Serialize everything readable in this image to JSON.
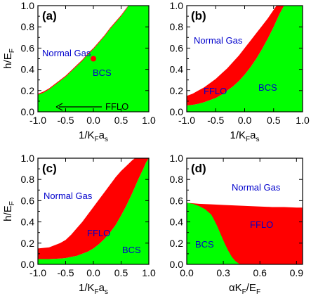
{
  "colors": {
    "normal": "#ffffff",
    "bcs": "#00ff00",
    "fflo": "#ff0000",
    "dot": "#ff0000",
    "frame": "#000000"
  },
  "chart_data": [
    {
      "type": "area",
      "panel_label": "(a)",
      "xlabel": {
        "main": "1/K",
        "sub1": "F",
        "mid": "a",
        "sub2": "s"
      },
      "ylabel": {
        "main": "h/E",
        "sub": "F"
      },
      "xlim": [
        -1.0,
        1.0
      ],
      "ylim": [
        0.0,
        1.0
      ],
      "xticks": [
        "-1.0",
        "-0.5",
        "0.0",
        "0.5",
        "1.0"
      ],
      "yticks": [
        "0.0",
        "0.2",
        "0.4",
        "0.6",
        "0.8",
        "1.0"
      ],
      "regions": [
        "Normal Gas",
        "BCS",
        "FFLO"
      ],
      "annotation": "FFLO",
      "point": {
        "x": 0.0,
        "y": 0.5
      },
      "upper_boundary": {
        "x": [
          -1.0,
          -0.9,
          -0.8,
          -0.7,
          -0.6,
          -0.5,
          -0.4,
          -0.3,
          -0.2,
          -0.1,
          0.0,
          0.1,
          0.2,
          0.3,
          0.4,
          0.5,
          0.6,
          0.63
        ],
        "y": [
          0.17,
          0.19,
          0.22,
          0.26,
          0.3,
          0.34,
          0.39,
          0.44,
          0.49,
          0.55,
          0.6,
          0.66,
          0.72,
          0.79,
          0.85,
          0.91,
          0.98,
          1.0
        ]
      },
      "lower_boundary": {
        "x": [
          -1.0,
          -0.9,
          -0.8,
          -0.7,
          -0.6,
          -0.5,
          -0.4,
          -0.3,
          -0.2,
          -0.1,
          0.0,
          0.1,
          0.2,
          0.3,
          0.4,
          0.5,
          0.6,
          0.63
        ],
        "y": [
          0.16,
          0.18,
          0.21,
          0.25,
          0.29,
          0.33,
          0.38,
          0.43,
          0.48,
          0.54,
          0.59,
          0.65,
          0.71,
          0.78,
          0.84,
          0.9,
          0.97,
          1.0
        ]
      }
    },
    {
      "type": "area",
      "panel_label": "(b)",
      "xlabel": {
        "main": "1/K",
        "sub1": "F",
        "mid": "a",
        "sub2": "s"
      },
      "ylabel": {
        "main": "",
        "sub": ""
      },
      "xlim": [
        -1.0,
        1.0
      ],
      "ylim": [
        0.0,
        1.0
      ],
      "xticks": [
        "-1.0",
        "-0.5",
        "0.0",
        "0.5",
        "1.0"
      ],
      "yticks": [
        "0.0",
        "0.2",
        "0.4",
        "0.6",
        "0.8",
        "1.0"
      ],
      "regions": [
        "Normal Gas",
        "FFLO",
        "BCS"
      ],
      "upper_boundary": {
        "x": [
          -1.0,
          -0.9,
          -0.8,
          -0.7,
          -0.6,
          -0.5,
          -0.4,
          -0.3,
          -0.2,
          -0.1,
          0.0,
          0.1,
          0.2,
          0.3,
          0.4,
          0.5,
          0.55
        ],
        "y": [
          0.15,
          0.17,
          0.2,
          0.23,
          0.27,
          0.31,
          0.36,
          0.41,
          0.47,
          0.53,
          0.6,
          0.67,
          0.74,
          0.81,
          0.88,
          0.96,
          1.0
        ]
      },
      "lower_boundary": {
        "x": [
          -1.0,
          -0.9,
          -0.8,
          -0.7,
          -0.6,
          -0.5,
          -0.4,
          -0.3,
          -0.2,
          -0.1,
          0.0,
          0.1,
          0.2,
          0.3,
          0.4,
          0.5,
          0.6,
          0.68
        ],
        "y": [
          0.06,
          0.065,
          0.075,
          0.09,
          0.11,
          0.13,
          0.16,
          0.2,
          0.24,
          0.29,
          0.35,
          0.42,
          0.5,
          0.59,
          0.69,
          0.8,
          0.92,
          1.0
        ]
      }
    },
    {
      "type": "area",
      "panel_label": "(c)",
      "xlabel": {
        "main": "1/K",
        "sub1": "F",
        "mid": "a",
        "sub2": "s"
      },
      "ylabel": {
        "main": "h/E",
        "sub": "F"
      },
      "xlim": [
        -1.0,
        1.0
      ],
      "ylim": [
        0.0,
        1.0
      ],
      "xticks": [
        "-1.0",
        "-0.5",
        "0.0",
        "0.5",
        "1.0"
      ],
      "yticks": [
        "0.0",
        "0.2",
        "0.4",
        "0.6",
        "0.8",
        "1.0"
      ],
      "regions": [
        "Normal Gas",
        "FFLO",
        "BCS"
      ],
      "upper_boundary": {
        "x": [
          -1.0,
          -0.8,
          -0.6,
          -0.5,
          -0.4,
          -0.3,
          -0.2,
          -0.1,
          0.0,
          0.1,
          0.2,
          0.3,
          0.4,
          0.5,
          0.6,
          0.7,
          0.75
        ],
        "y": [
          0.15,
          0.16,
          0.2,
          0.23,
          0.28,
          0.34,
          0.4,
          0.47,
          0.54,
          0.61,
          0.68,
          0.75,
          0.82,
          0.88,
          0.93,
          0.98,
          1.0
        ]
      },
      "lower_boundary": {
        "x": [
          -1.0,
          -0.8,
          -0.6,
          -0.5,
          -0.4,
          -0.3,
          -0.2,
          -0.1,
          0.0,
          0.1,
          0.2,
          0.3,
          0.4,
          0.5,
          0.6,
          0.7,
          0.8,
          0.9,
          0.95,
          1.0
        ],
        "y": [
          0.05,
          0.05,
          0.055,
          0.06,
          0.07,
          0.08,
          0.1,
          0.12,
          0.15,
          0.19,
          0.24,
          0.3,
          0.37,
          0.46,
          0.56,
          0.67,
          0.79,
          0.9,
          0.96,
          1.0
        ]
      }
    },
    {
      "type": "area",
      "panel_label": "(d)",
      "xlabel": {
        "main": "αK",
        "sub1": "F",
        "mid": "/E",
        "sub2": "F"
      },
      "ylabel": {
        "main": "",
        "sub": ""
      },
      "xlim": [
        0.0,
        0.95
      ],
      "ylim": [
        0.0,
        1.0
      ],
      "xticks": [
        "0.0",
        "0.3",
        "0.6",
        "0.9"
      ],
      "xtick_values": [
        0.0,
        0.3,
        0.6,
        0.9
      ],
      "yticks": [
        "0.0",
        "0.2",
        "0.4",
        "0.6",
        "0.8",
        "1.0"
      ],
      "regions": [
        "Normal Gas",
        "FFLO",
        "BCS"
      ],
      "upper_boundary": {
        "x": [
          0.0,
          0.1,
          0.2,
          0.3,
          0.4,
          0.5,
          0.6,
          0.7,
          0.8,
          0.9,
          0.95
        ],
        "y": [
          0.58,
          0.57,
          0.565,
          0.56,
          0.555,
          0.55,
          0.545,
          0.54,
          0.54,
          0.535,
          0.535
        ]
      },
      "lower_boundary": {
        "x": [
          0.0,
          0.05,
          0.1,
          0.15,
          0.2,
          0.22,
          0.25,
          0.28,
          0.31,
          0.34,
          0.37,
          0.4,
          0.43,
          0.46
        ],
        "y": [
          0.58,
          0.57,
          0.55,
          0.52,
          0.47,
          0.43,
          0.36,
          0.28,
          0.2,
          0.13,
          0.07,
          0.03,
          0.005,
          0.0
        ]
      }
    }
  ],
  "annotation_text": {
    "a_normal": "Normal Gas",
    "a_bcs": "BCS",
    "a_fflo": "FFLO",
    "b_normal": "Normal Gas",
    "b_fflo": "FFLO",
    "b_bcs": "BCS",
    "c_normal": "Normal Gas",
    "c_fflo": "FFLO",
    "c_bcs": "BCS",
    "d_normal": "Normal Gas",
    "d_fflo": "FFLO",
    "d_bcs": "BCS"
  }
}
